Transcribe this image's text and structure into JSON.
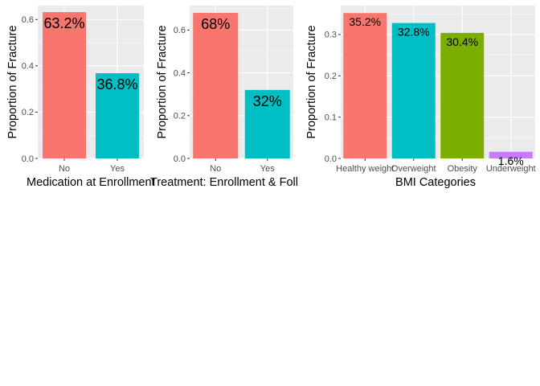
{
  "chart_data": [
    {
      "type": "bar",
      "categories": [
        "No",
        "Yes"
      ],
      "values": [
        0.632,
        0.368
      ],
      "labels": [
        "63.2%",
        "36.8%"
      ],
      "colors": [
        "#F8766D",
        "#00BFC4"
      ],
      "xlabel": "Medication at Enrollment",
      "ylabel": "Proportion of Fracture",
      "ylim": [
        0,
        0.66
      ],
      "yticks": [
        0.0,
        0.2,
        0.4,
        0.6
      ],
      "ytick_labels": [
        "0.0",
        "0.2",
        "0.4",
        "0.6"
      ],
      "grid": true,
      "legend": "none"
    },
    {
      "type": "bar",
      "categories": [
        "No",
        "Yes"
      ],
      "values": [
        0.68,
        0.32
      ],
      "labels": [
        "68%",
        "32%"
      ],
      "colors": [
        "#F8766D",
        "#00BFC4"
      ],
      "xlabel": "Treatment: Enrollment & Foll",
      "ylabel": "Proportion of Fracture",
      "ylim": [
        0,
        0.714
      ],
      "yticks": [
        0.0,
        0.2,
        0.4,
        0.6
      ],
      "ytick_labels": [
        "0.0",
        "0.2",
        "0.4",
        "0.6"
      ],
      "grid": true,
      "legend": "none"
    },
    {
      "type": "bar",
      "categories": [
        "Healthy weight",
        "Overweight",
        "Obesity",
        "Underweight"
      ],
      "values": [
        0.352,
        0.328,
        0.304,
        0.016
      ],
      "labels": [
        "35.2%",
        "32.8%",
        "30.4%",
        "1.6%"
      ],
      "colors": [
        "#F8766D",
        "#00BFC4",
        "#7CAE00",
        "#C77CFF"
      ],
      "xlabel": "BMI Categories",
      "ylabel": "Proportion of Fracture",
      "ylim": [
        0,
        0.37
      ],
      "yticks": [
        0.0,
        0.1,
        0.2,
        0.3
      ],
      "ytick_labels": [
        "0.0",
        "0.1",
        "0.2",
        "0.3"
      ],
      "grid": true,
      "legend": "none"
    }
  ],
  "theme": {
    "panel_bg": "#EBEBEB",
    "grid_major": "#FFFFFF",
    "tick_color": "#333333",
    "text_color": "#000000",
    "tick_text_color": "#4D4D4D"
  }
}
